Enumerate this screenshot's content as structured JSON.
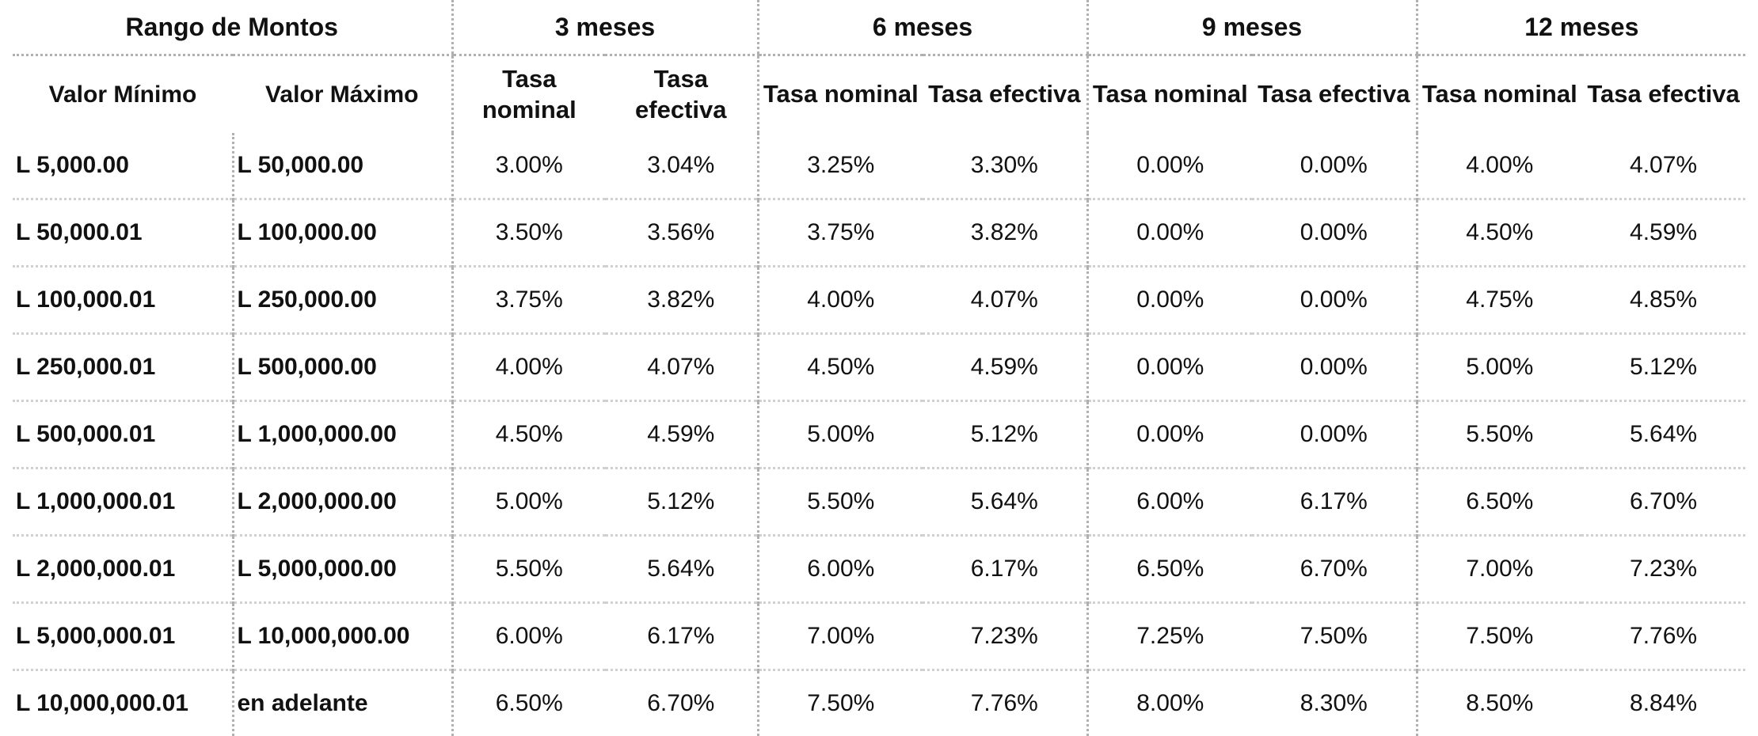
{
  "header": {
    "range_label": "Rango de Montos",
    "periods": [
      "3 meses",
      "6 meses",
      "9 meses",
      "12 meses"
    ],
    "min_label": "Valor Mínimo",
    "max_label": "Valor Máximo",
    "nominal_label": "Tasa nominal",
    "effective_label": "Tasa efectiva"
  },
  "rows": [
    {
      "min": "L 5,000.00",
      "max": "L 50,000.00",
      "rates": [
        "3.00%",
        "3.04%",
        "3.25%",
        "3.30%",
        "0.00%",
        "0.00%",
        "4.00%",
        "4.07%"
      ]
    },
    {
      "min": "L 50,000.01",
      "max": "L 100,000.00",
      "rates": [
        "3.50%",
        "3.56%",
        "3.75%",
        "3.82%",
        "0.00%",
        "0.00%",
        "4.50%",
        "4.59%"
      ]
    },
    {
      "min": "L 100,000.01",
      "max": "L 250,000.00",
      "rates": [
        "3.75%",
        "3.82%",
        "4.00%",
        "4.07%",
        "0.00%",
        "0.00%",
        "4.75%",
        "4.85%"
      ]
    },
    {
      "min": "L 250,000.01",
      "max": "L 500,000.00",
      "rates": [
        "4.00%",
        "4.07%",
        "4.50%",
        "4.59%",
        "0.00%",
        "0.00%",
        "5.00%",
        "5.12%"
      ]
    },
    {
      "min": "L 500,000.01",
      "max": "L 1,000,000.00",
      "rates": [
        "4.50%",
        "4.59%",
        "5.00%",
        "5.12%",
        "0.00%",
        "0.00%",
        "5.50%",
        "5.64%"
      ]
    },
    {
      "min": "L 1,000,000.01",
      "max": "L 2,000,000.00",
      "rates": [
        "5.00%",
        "5.12%",
        "5.50%",
        "5.64%",
        "6.00%",
        "6.17%",
        "6.50%",
        "6.70%"
      ]
    },
    {
      "min": "L 2,000,000.01",
      "max": "L 5,000,000.00",
      "rates": [
        "5.50%",
        "5.64%",
        "6.00%",
        "6.17%",
        "6.50%",
        "6.70%",
        "7.00%",
        "7.23%"
      ]
    },
    {
      "min": "L 5,000,000.01",
      "max": "L 10,000,000.00",
      "rates": [
        "6.00%",
        "6.17%",
        "7.00%",
        "7.23%",
        "7.25%",
        "7.50%",
        "7.50%",
        "7.76%"
      ]
    },
    {
      "min": "L 10,000,000.01",
      "max": "en adelante",
      "rates": [
        "6.50%",
        "6.70%",
        "7.50%",
        "7.76%",
        "8.00%",
        "8.30%",
        "8.50%",
        "8.84%"
      ]
    }
  ]
}
